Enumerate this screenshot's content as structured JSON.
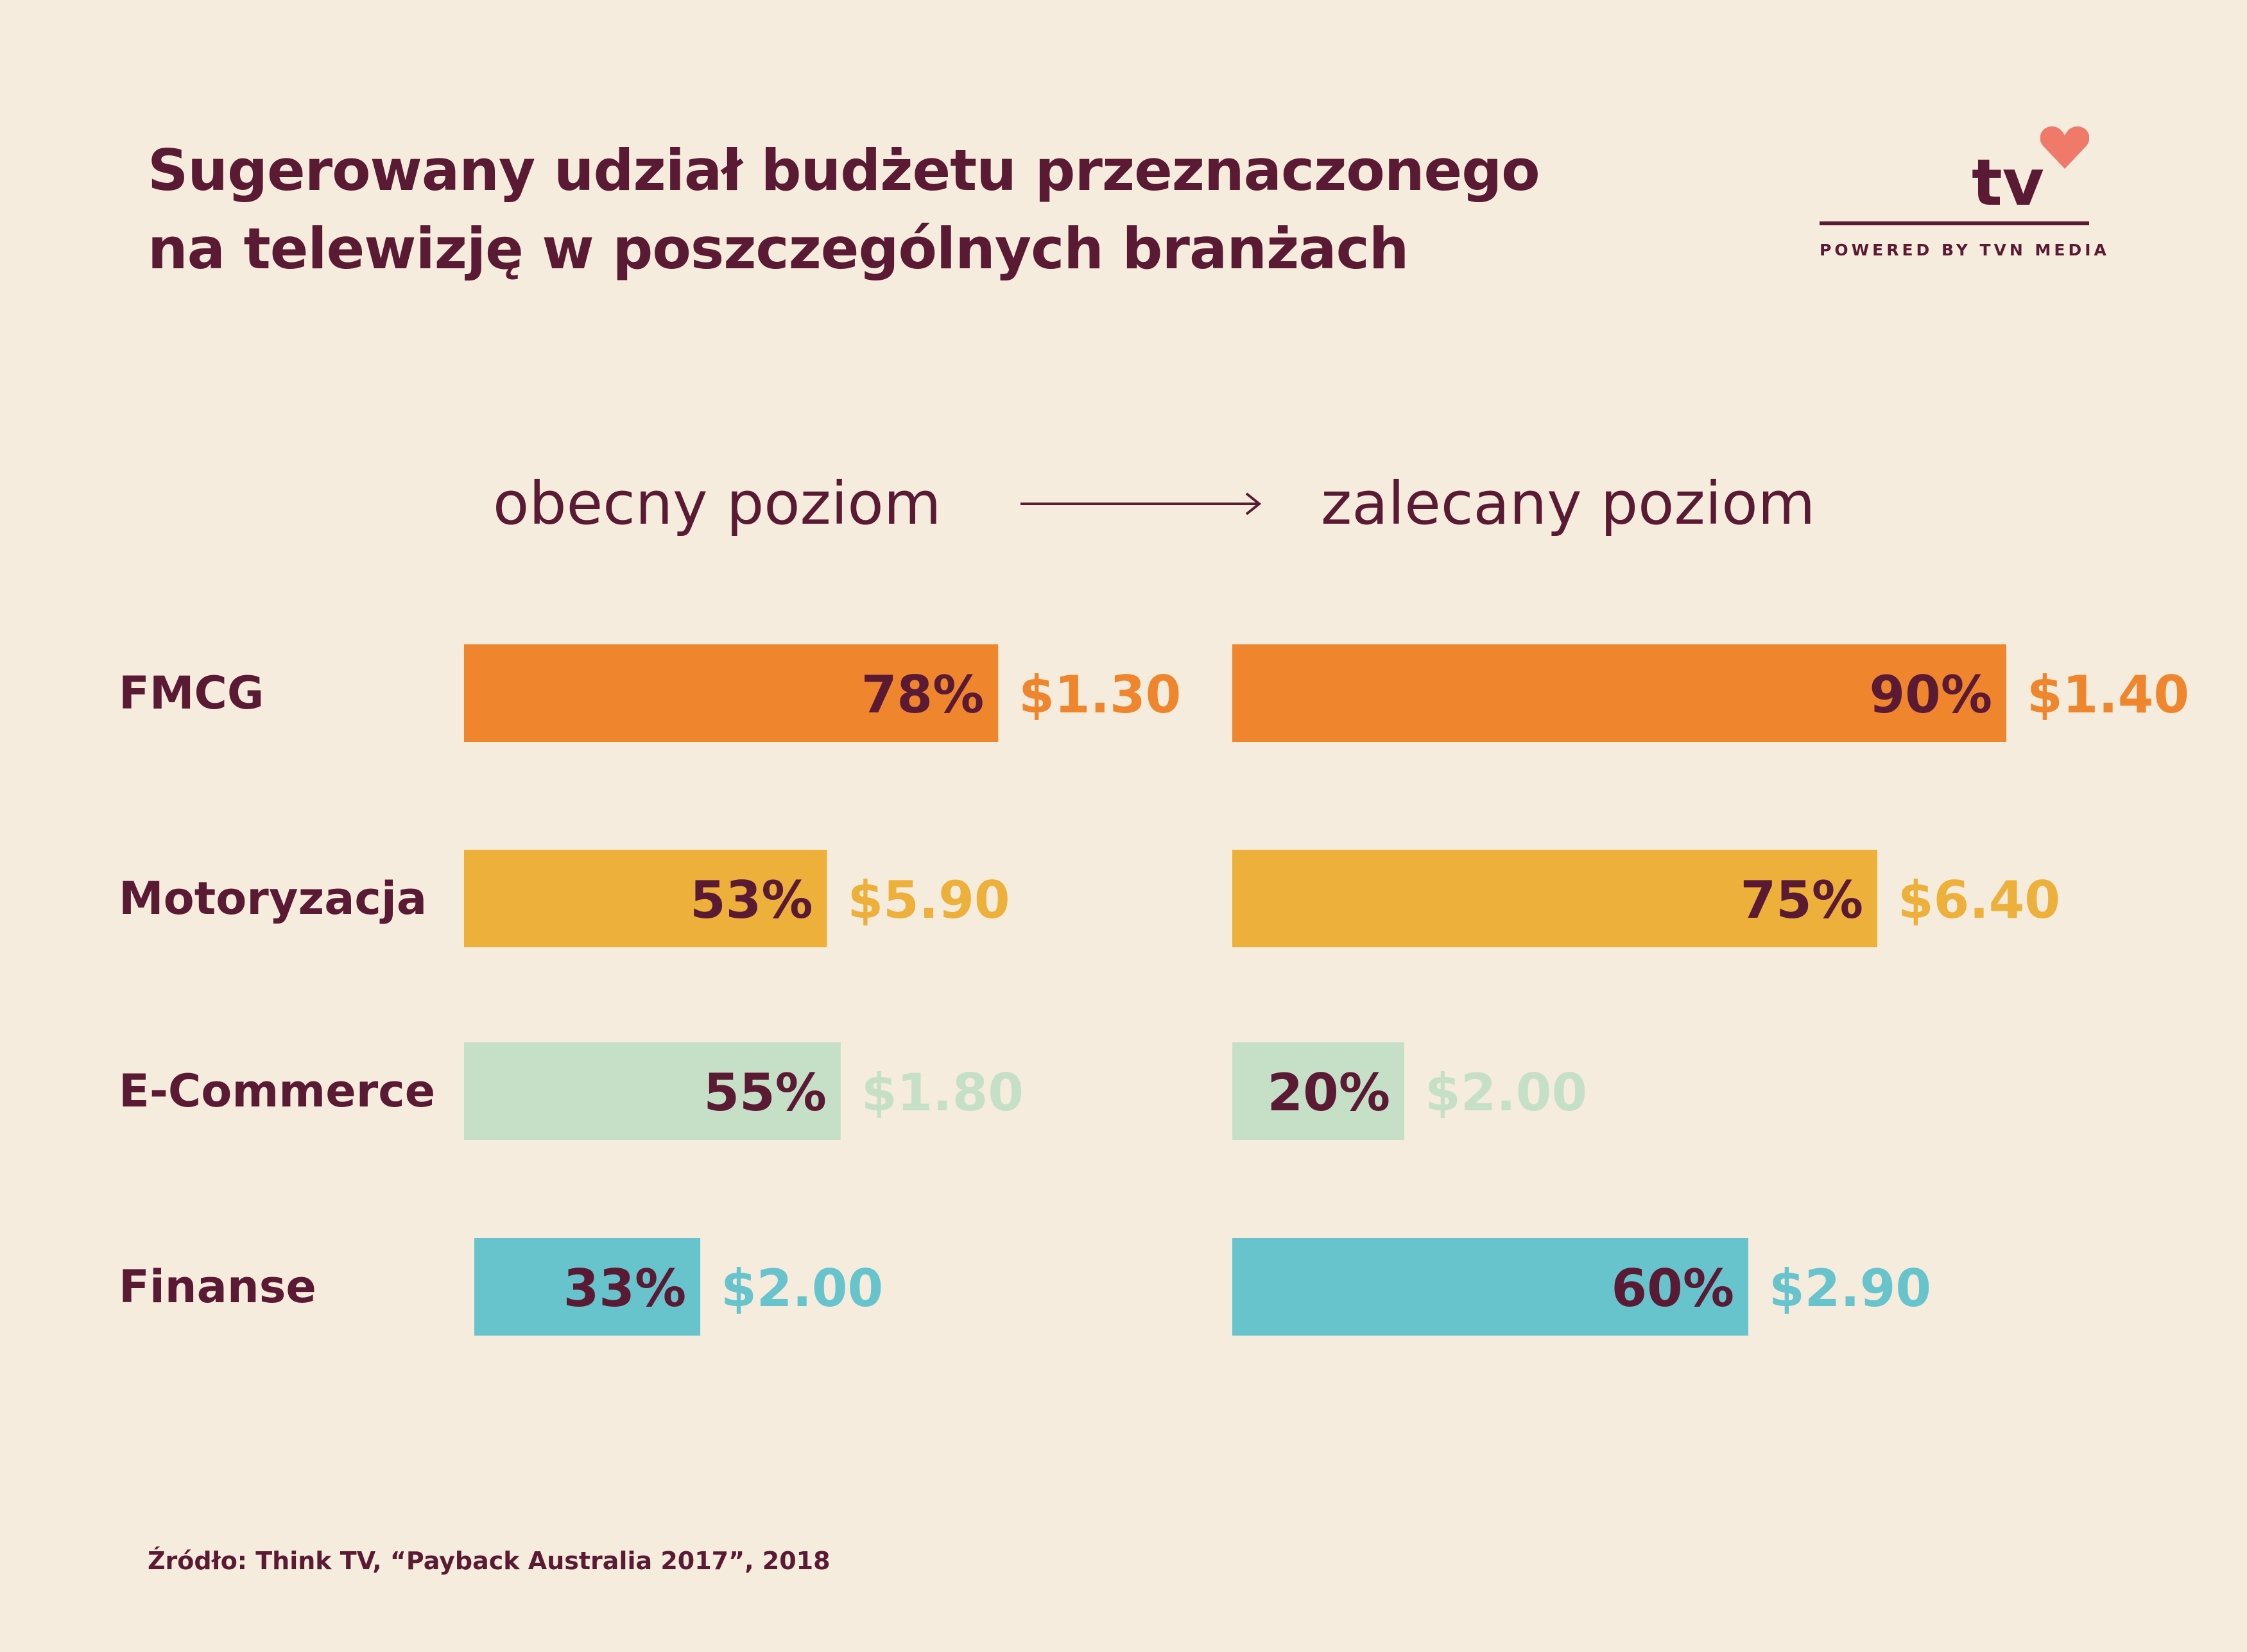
{
  "title": {
    "line1": "Sugerowany udział budżetu przeznaczonego",
    "line2": "na telewizję w poszczególnych branżach"
  },
  "logo": {
    "wordmark": "tv",
    "tagline": "POWERED BY TVN MEDIA",
    "icon": "heart-icon"
  },
  "columns": {
    "current_label": "obecny poziom",
    "recommended_label": "zalecany poziom",
    "arrow_icon": "arrow-right-icon"
  },
  "colors": {
    "background": "#f5ecdd",
    "text": "#5a1a34",
    "FMCG": "#ef852c",
    "Motoryzacja": "#edb03a",
    "E-Commerce": "#c6e0c8",
    "Finanse": "#67c3cc"
  },
  "chart_data": [
    {
      "type": "bar",
      "orientation": "horizontal",
      "title": "obecny poziom",
      "categories": [
        "FMCG",
        "Motoryzacja",
        "E-Commerce",
        "Finanse"
      ],
      "values": [
        78,
        53,
        55,
        33
      ],
      "value_labels": [
        "78%",
        "53%",
        "55%",
        "33%"
      ],
      "side_labels": [
        "$1.30",
        "$5.90",
        "$1.80",
        "$2.00"
      ],
      "xlim": [
        0,
        100
      ]
    },
    {
      "type": "bar",
      "orientation": "horizontal",
      "title": "zalecany poziom",
      "categories": [
        "FMCG",
        "Motoryzacja",
        "E-Commerce",
        "Finanse"
      ],
      "values": [
        90,
        75,
        20,
        60
      ],
      "value_labels": [
        "90%",
        "75%",
        "20%",
        "60%"
      ],
      "side_labels": [
        "$1.40",
        "$6.40",
        "$2.00",
        "$2.90"
      ],
      "xlim": [
        0,
        100
      ]
    }
  ],
  "source": "Źródło: Think TV, “Payback Australia 2017”, 2018"
}
